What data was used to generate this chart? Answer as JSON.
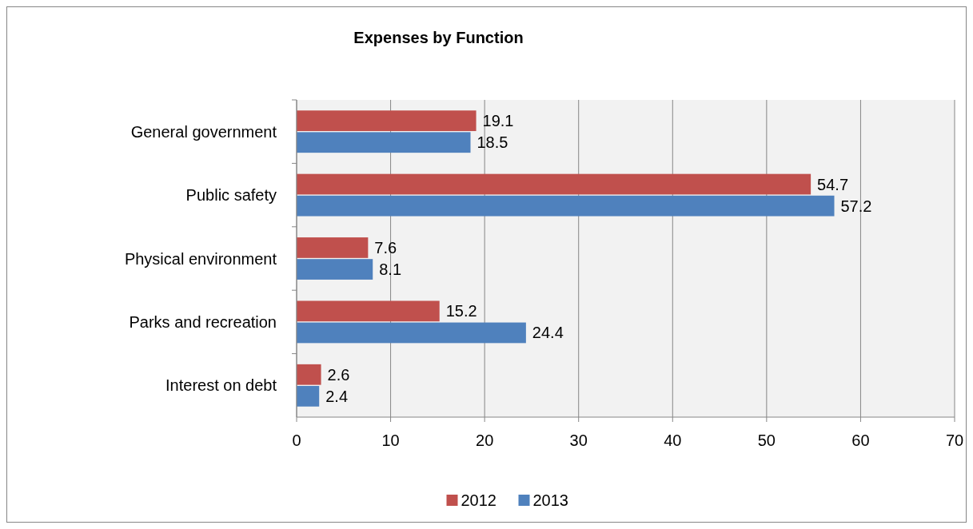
{
  "chart_data": {
    "type": "bar",
    "title": "Expenses by Function",
    "orientation": "horizontal",
    "categories": [
      "General government",
      "Public safety",
      "Physical environment",
      "Parks and recreation",
      "Interest on debt"
    ],
    "series": [
      {
        "name": "2012",
        "color": "#c0504d",
        "values": [
          19.1,
          54.7,
          7.6,
          15.2,
          2.6
        ]
      },
      {
        "name": "2013",
        "color": "#4f81bd",
        "values": [
          18.5,
          57.2,
          8.1,
          24.4,
          2.4
        ]
      }
    ],
    "xlim": [
      0,
      70
    ],
    "xticks": [
      0,
      10,
      20,
      30,
      40,
      50,
      60,
      70
    ],
    "grid": "x",
    "legend": "bottom",
    "data_labels": true
  }
}
